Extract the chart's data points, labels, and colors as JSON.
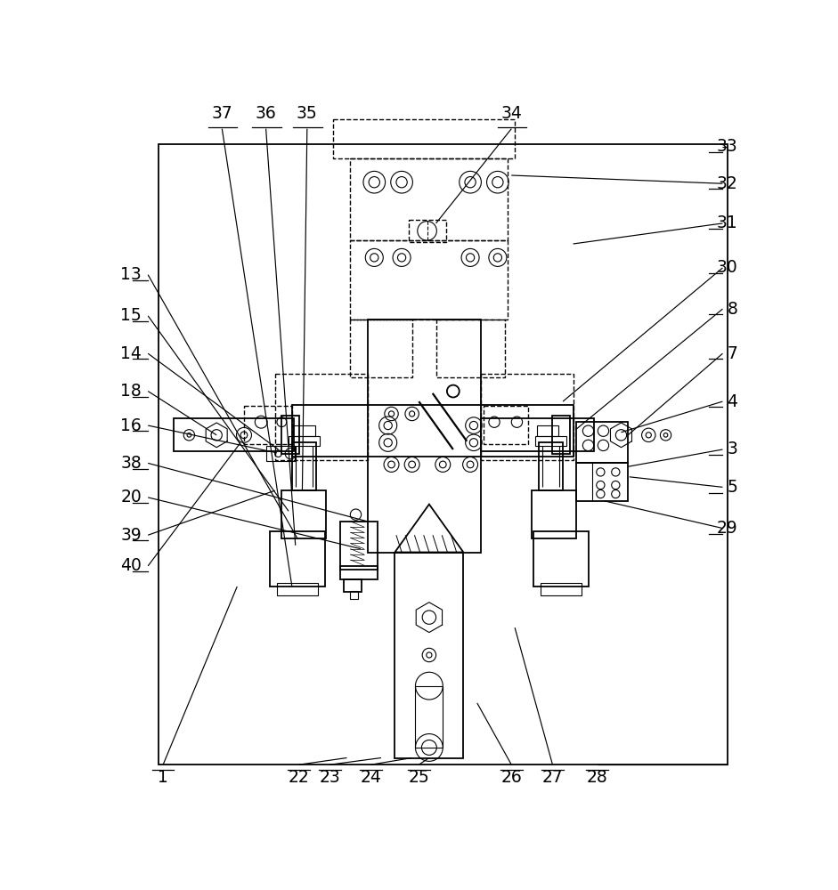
{
  "fig_width": 9.41,
  "fig_height": 10.0,
  "dpi": 100,
  "bg_color": "#ffffff",
  "lc": "#000000",
  "lw": 1.3,
  "tlw": 0.8,
  "llw": 0.85,
  "fs": 13.5
}
